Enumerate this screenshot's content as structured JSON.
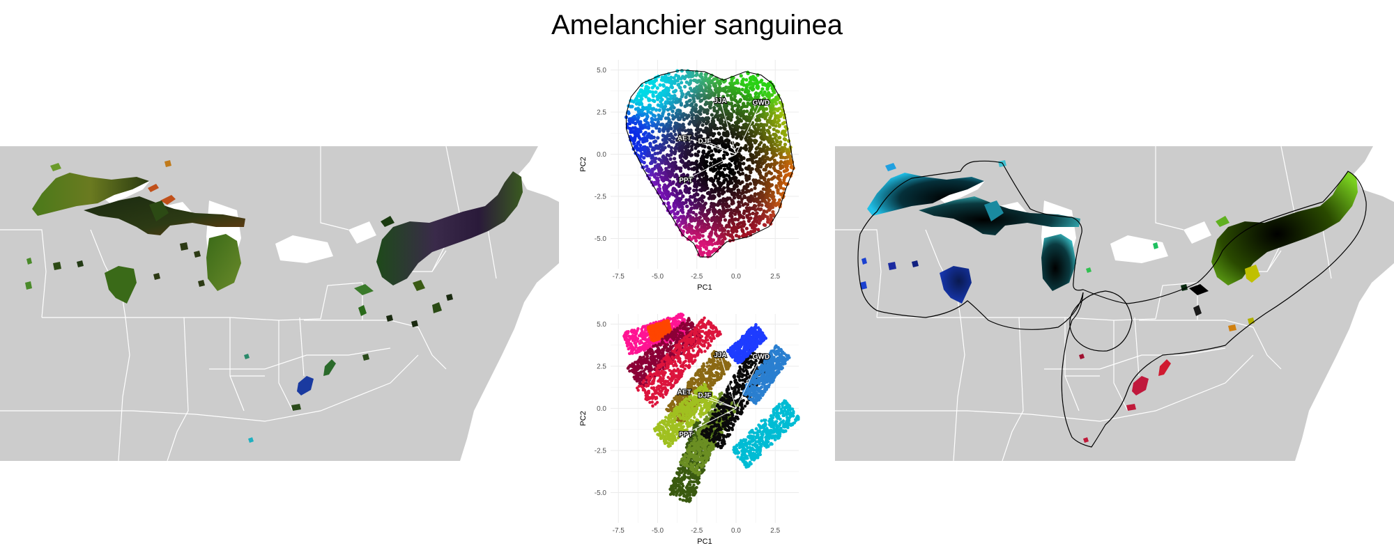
{
  "title": "Amelanchier sanguinea",
  "colors": {
    "map_land": "#cccccc",
    "map_border": "#ffffff",
    "grid": "#ebebeb",
    "hull_line": "#000000",
    "vector_line": "#ffffff"
  },
  "chart_data": [
    {
      "type": "scatter",
      "panel": "pca-top",
      "title": "",
      "xlabel": "PC1",
      "ylabel": "PC2",
      "xlim": [
        -8,
        4
      ],
      "ylim": [
        -6.8,
        5.6
      ],
      "xticks": [
        -7.5,
        -5.0,
        -2.5,
        0.0,
        2.5
      ],
      "yticks": [
        -5.0,
        -2.5,
        0.0,
        2.5,
        5.0
      ],
      "xtick_labels": [
        "-7.5",
        "-5.0",
        "-2.5",
        "0.0",
        "2.5"
      ],
      "ytick_labels": [
        "-5.0",
        "-2.5",
        "0.0",
        "2.5",
        "5.0"
      ],
      "grid": true,
      "coloring": "continuous RGB by PCA position (cyan upper-left, green upper-right, blue left, magenta lower-left, orange right, black center)",
      "point_cloud_outline": [
        [
          -7.0,
          2.4
        ],
        [
          -6.7,
          3.4
        ],
        [
          -6.0,
          4.2
        ],
        [
          -4.8,
          4.7
        ],
        [
          -3.5,
          5.0
        ],
        [
          -2.0,
          4.9
        ],
        [
          -0.8,
          4.4
        ],
        [
          0.6,
          4.9
        ],
        [
          1.6,
          4.7
        ],
        [
          2.3,
          4.2
        ],
        [
          2.9,
          3.2
        ],
        [
          3.2,
          2.0
        ],
        [
          3.4,
          0.8
        ],
        [
          3.7,
          -0.8
        ],
        [
          3.2,
          -2.0
        ],
        [
          2.7,
          -3.4
        ],
        [
          2.1,
          -4.3
        ],
        [
          0.8,
          -4.9
        ],
        [
          -0.6,
          -5.2
        ],
        [
          -1.6,
          -6.1
        ],
        [
          -2.3,
          -6.1
        ],
        [
          -2.7,
          -5.3
        ],
        [
          -3.4,
          -4.8
        ],
        [
          -4.3,
          -3.4
        ],
        [
          -5.0,
          -2.3
        ],
        [
          -5.9,
          -0.9
        ],
        [
          -6.6,
          0.4
        ],
        [
          -7.0,
          1.5
        ]
      ],
      "vectors": [
        {
          "label": "JJA",
          "x": -1.0,
          "y": 3.2
        },
        {
          "label": "GWD",
          "x": 1.6,
          "y": 3.1
        },
        {
          "label": "AET",
          "x": -3.3,
          "y": 1.0
        },
        {
          "label": "DJF",
          "x": -2.0,
          "y": 0.8
        },
        {
          "label": "PPT",
          "x": -3.2,
          "y": -1.5
        }
      ]
    },
    {
      "type": "scatter",
      "panel": "pca-bottom",
      "title": "",
      "xlabel": "PC1",
      "ylabel": "PC2",
      "xlim": [
        -8,
        4
      ],
      "ylim": [
        -6.8,
        5.6
      ],
      "xticks": [
        -7.5,
        -5.0,
        -2.5,
        0.0,
        2.5
      ],
      "yticks": [
        -5.0,
        -2.5,
        0.0,
        2.5,
        5.0
      ],
      "xtick_labels": [
        "-7.5",
        "-5.0",
        "-2.5",
        "0.0",
        "2.5"
      ],
      "ytick_labels": [
        "-5.0",
        "-2.5",
        "0.0",
        "2.5",
        "5.0"
      ],
      "grid": true,
      "coloring": "cluster colors, diagonal bands",
      "bands": [
        {
          "color": "#ff1493",
          "from": [
            -7.0,
            3.8
          ],
          "to": [
            -3.2,
            5.0
          ],
          "width": 1.4
        },
        {
          "color": "#ff4500",
          "from": [
            -5.5,
            4.4
          ],
          "to": [
            -4.2,
            4.8
          ],
          "width": 0.9
        },
        {
          "color": "#8b0036",
          "from": [
            -6.5,
            1.8
          ],
          "to": [
            -2.6,
            4.8
          ],
          "width": 1.5
        },
        {
          "color": "#dc143c",
          "from": [
            -5.8,
            0.6
          ],
          "to": [
            -1.5,
            5.0
          ],
          "width": 1.6
        },
        {
          "color": "#8b6914",
          "from": [
            -4.0,
            -0.5
          ],
          "to": [
            -0.8,
            3.0
          ],
          "width": 1.4
        },
        {
          "color": "#a0c020",
          "from": [
            -4.8,
            -1.8
          ],
          "to": [
            -1.6,
            1.0
          ],
          "width": 1.5
        },
        {
          "color": "#3a5a10",
          "from": [
            -3.6,
            -5.4
          ],
          "to": [
            -1.8,
            -1.0
          ],
          "width": 1.6
        },
        {
          "color": "#6b8e23",
          "from": [
            -3.0,
            -3.6
          ],
          "to": [
            -0.4,
            0.6
          ],
          "width": 1.4
        },
        {
          "color": "#0a0a0a",
          "from": [
            -1.6,
            -2.0
          ],
          "to": [
            1.6,
            3.2
          ],
          "width": 1.6
        },
        {
          "color": "#1e3cff",
          "from": [
            -0.2,
            3.0
          ],
          "to": [
            1.6,
            4.6
          ],
          "width": 1.1
        },
        {
          "color": "#2a7fd0",
          "from": [
            0.8,
            0.6
          ],
          "to": [
            3.0,
            3.4
          ],
          "width": 1.2
        },
        {
          "color": "#00bcd4",
          "from": [
            0.2,
            -3.0
          ],
          "to": [
            3.6,
            0.0
          ],
          "width": 1.5
        }
      ],
      "vectors": [
        {
          "label": "JJA",
          "x": -1.0,
          "y": 3.2
        },
        {
          "label": "GWD",
          "x": 1.6,
          "y": 3.1
        },
        {
          "label": "AET",
          "x": -3.3,
          "y": 1.0
        },
        {
          "label": "DJF",
          "x": -2.0,
          "y": 0.8
        },
        {
          "label": "PPT",
          "x": -3.2,
          "y": -1.5
        }
      ]
    }
  ]
}
